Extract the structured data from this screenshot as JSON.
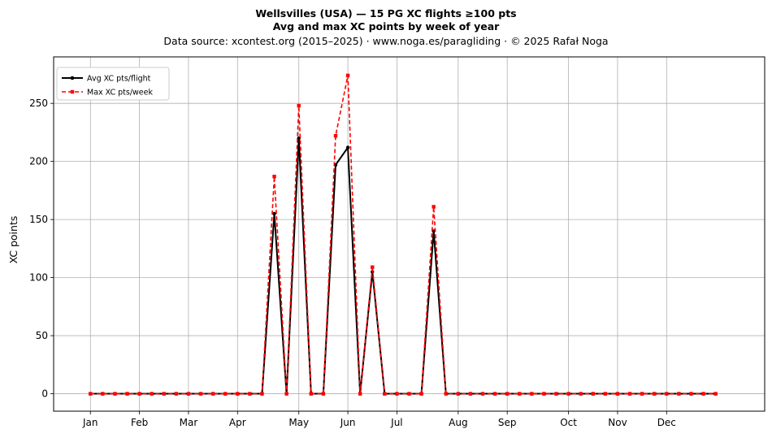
{
  "chart_data": {
    "type": "line",
    "title": "Wellsvilles (USA)  —  15 PG XC flights ≥100 pts",
    "subtitle": "Avg and max XC points by week of year",
    "source_line": "Data source: xcontest.org (2015–2025)  ·  www.noga.es/paragliding  ·  © 2025 Rafał Noga",
    "xlabel": "",
    "ylabel": "XC points",
    "ylim": [
      -15,
      290
    ],
    "yticks": [
      0,
      50,
      100,
      150,
      200,
      250
    ],
    "xlim": [
      -3,
      55
    ],
    "month_ticks": [
      {
        "label": "Jan",
        "week": 0
      },
      {
        "label": "Feb",
        "week": 4
      },
      {
        "label": "Mar",
        "week": 8
      },
      {
        "label": "Apr",
        "week": 12
      },
      {
        "label": "May",
        "week": 17
      },
      {
        "label": "Jun",
        "week": 21
      },
      {
        "label": "Jul",
        "week": 25
      },
      {
        "label": "Aug",
        "week": 30
      },
      {
        "label": "Sep",
        "week": 34
      },
      {
        "label": "Oct",
        "week": 39
      },
      {
        "label": "Nov",
        "week": 43
      },
      {
        "label": "Dec",
        "week": 47
      }
    ],
    "grid": true,
    "legend_position": "top-left",
    "x": [
      0,
      1,
      2,
      3,
      4,
      5,
      6,
      7,
      8,
      9,
      10,
      11,
      12,
      13,
      14,
      15,
      16,
      17,
      18,
      19,
      20,
      21,
      22,
      23,
      24,
      25,
      26,
      27,
      28,
      29,
      30,
      31,
      32,
      33,
      34,
      35,
      36,
      37,
      38,
      39,
      40,
      41,
      42,
      43,
      44,
      45,
      46,
      47,
      48,
      49,
      50,
      51
    ],
    "series": [
      {
        "name": "Avg XC pts/flight",
        "color": "#000000",
        "style": "solid",
        "marker": "circle",
        "values": [
          0,
          0,
          0,
          0,
          0,
          0,
          0,
          0,
          0,
          0,
          0,
          0,
          0,
          0,
          0,
          155,
          0,
          220,
          0,
          0,
          197,
          212,
          0,
          105,
          0,
          0,
          0,
          0,
          140,
          0,
          0,
          0,
          0,
          0,
          0,
          0,
          0,
          0,
          0,
          0,
          0,
          0,
          0,
          0,
          0,
          0,
          0,
          0,
          0,
          0,
          0,
          0
        ]
      },
      {
        "name": "Max XC pts/week",
        "color": "#ff0000",
        "style": "dashed",
        "marker": "square",
        "values": [
          0,
          0,
          0,
          0,
          0,
          0,
          0,
          0,
          0,
          0,
          0,
          0,
          0,
          0,
          0,
          187,
          0,
          248,
          0,
          0,
          222,
          274,
          0,
          109,
          0,
          0,
          0,
          0,
          161,
          0,
          0,
          0,
          0,
          0,
          0,
          0,
          0,
          0,
          0,
          0,
          0,
          0,
          0,
          0,
          0,
          0,
          0,
          0,
          0,
          0,
          0,
          0
        ]
      }
    ]
  }
}
